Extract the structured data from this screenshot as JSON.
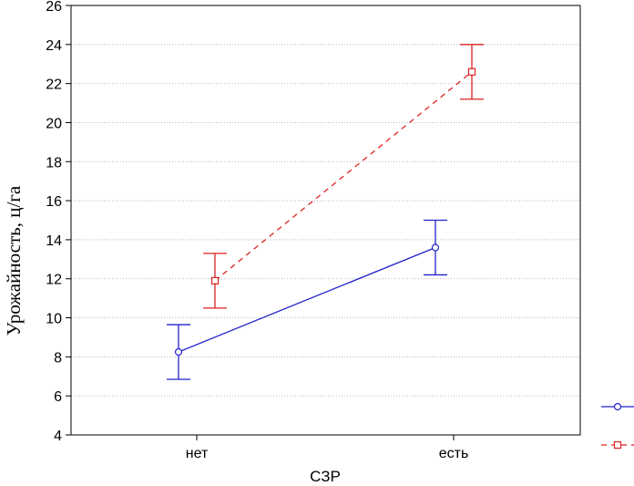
{
  "chart_data": {
    "type": "line",
    "title": "",
    "xlabel": "СЗР",
    "ylabel": "Урожайность, ц/га",
    "categories": [
      "нет",
      "есть"
    ],
    "ylim": [
      4,
      26
    ],
    "yticks": [
      4,
      6,
      8,
      10,
      12,
      14,
      16,
      18,
      20,
      22,
      24,
      26
    ],
    "grid": true,
    "legend_position": "right",
    "series": [
      {
        "name": "",
        "color": "#2222cc",
        "line_style": "solid",
        "marker": "circle",
        "values": [
          8.25,
          13.6
        ],
        "error_low": [
          6.85,
          12.2
        ],
        "error_high": [
          9.65,
          15.0
        ]
      },
      {
        "name": "",
        "color": "#dd2222",
        "line_style": "dashed",
        "marker": "square",
        "values": [
          11.9,
          22.6
        ],
        "error_low": [
          10.5,
          21.2
        ],
        "error_high": [
          13.3,
          24.0
        ]
      }
    ]
  }
}
